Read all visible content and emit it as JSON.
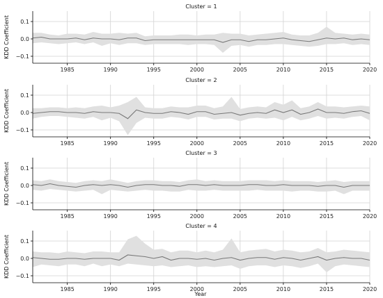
{
  "figure": {
    "ylabel": "KDD Coefficient",
    "xlabel": "Year"
  },
  "style": {
    "line_color": "#777777",
    "band_color": "#e0e0e0",
    "grid_color": "#d2d2d2",
    "axis_color": "#000000"
  },
  "chart_data": [
    {
      "type": "line",
      "title": "Cluster = 1",
      "x": [
        1981,
        1982,
        1983,
        1984,
        1985,
        1986,
        1987,
        1988,
        1989,
        1990,
        1991,
        1992,
        1993,
        1994,
        1995,
        1996,
        1997,
        1998,
        1999,
        2000,
        2001,
        2002,
        2003,
        2004,
        2005,
        2006,
        2007,
        2008,
        2009,
        2010,
        2011,
        2012,
        2013,
        2014,
        2015,
        2016,
        2017,
        2018,
        2019,
        2020
      ],
      "values": [
        0.005,
        0.01,
        0.0,
        0.0,
        0.0,
        0.005,
        -0.005,
        0.005,
        0.0,
        0.0,
        -0.005,
        0.005,
        0.005,
        -0.01,
        -0.005,
        -0.005,
        -0.005,
        -0.005,
        -0.005,
        -0.005,
        -0.005,
        -0.005,
        -0.02,
        -0.005,
        -0.005,
        -0.015,
        -0.005,
        -0.005,
        0.0,
        0.005,
        -0.005,
        -0.01,
        -0.015,
        -0.005,
        0.005,
        0.0,
        0.005,
        -0.005,
        0.0,
        -0.005
      ],
      "lower": [
        -0.025,
        -0.02,
        -0.025,
        -0.03,
        -0.025,
        -0.02,
        -0.03,
        -0.02,
        -0.04,
        -0.025,
        -0.035,
        -0.025,
        -0.025,
        -0.035,
        -0.03,
        -0.03,
        -0.03,
        -0.03,
        -0.035,
        -0.03,
        -0.03,
        -0.035,
        -0.08,
        -0.04,
        -0.035,
        -0.045,
        -0.035,
        -0.035,
        -0.03,
        -0.03,
        -0.035,
        -0.04,
        -0.045,
        -0.04,
        -0.03,
        -0.03,
        -0.025,
        -0.035,
        -0.03,
        -0.035
      ],
      "upper": [
        0.035,
        0.035,
        0.025,
        0.02,
        0.03,
        0.03,
        0.025,
        0.04,
        0.03,
        0.03,
        0.035,
        0.03,
        0.035,
        0.015,
        0.02,
        0.02,
        0.02,
        0.025,
        0.025,
        0.02,
        0.025,
        0.025,
        0.035,
        0.03,
        0.03,
        0.02,
        0.025,
        0.03,
        0.035,
        0.04,
        0.025,
        0.02,
        0.02,
        0.035,
        0.07,
        0.035,
        0.03,
        0.025,
        0.03,
        0.025
      ],
      "xlim": [
        1981,
        2020
      ],
      "ylim": [
        -0.14,
        0.16
      ],
      "yticks": [
        0.1,
        0.0,
        -0.1
      ],
      "ytick_labels": [
        "0.1",
        "0.0",
        "−0.1"
      ],
      "xticks": [
        1985,
        1990,
        1995,
        2000,
        2005,
        2010,
        2015,
        2020
      ],
      "xtick_labels": [
        "1985",
        "1990",
        "1995",
        "2000",
        "2005",
        "2010",
        "2015",
        "2020"
      ],
      "grid": true
    },
    {
      "type": "line",
      "title": "Cluster = 2",
      "x": [
        1981,
        1982,
        1983,
        1984,
        1985,
        1986,
        1987,
        1988,
        1989,
        1990,
        1991,
        1992,
        1993,
        1994,
        1995,
        1996,
        1997,
        1998,
        1999,
        2000,
        2001,
        2002,
        2003,
        2004,
        2005,
        2006,
        2007,
        2008,
        2009,
        2010,
        2011,
        2012,
        2013,
        2014,
        2015,
        2016,
        2017,
        2018,
        2019,
        2020
      ],
      "values": [
        -0.005,
        0.0,
        0.005,
        0.005,
        0.0,
        0.0,
        -0.005,
        0.005,
        0.0,
        0.0,
        -0.005,
        -0.035,
        0.015,
        0.0,
        -0.005,
        -0.005,
        0.005,
        0.0,
        -0.01,
        0.005,
        0.005,
        -0.01,
        -0.005,
        0.0,
        -0.015,
        -0.005,
        0.0,
        -0.005,
        0.015,
        0.0,
        0.015,
        -0.01,
        0.0,
        0.02,
        0.0,
        0.0,
        -0.005,
        0.005,
        0.01,
        -0.005
      ],
      "lower": [
        -0.035,
        -0.025,
        -0.02,
        -0.02,
        -0.025,
        -0.03,
        -0.035,
        -0.025,
        -0.045,
        -0.03,
        -0.05,
        -0.13,
        -0.06,
        -0.03,
        -0.035,
        -0.035,
        -0.025,
        -0.03,
        -0.04,
        -0.025,
        -0.025,
        -0.04,
        -0.035,
        -0.035,
        -0.05,
        -0.035,
        -0.03,
        -0.035,
        -0.03,
        -0.045,
        -0.025,
        -0.045,
        -0.035,
        -0.02,
        -0.035,
        -0.03,
        -0.035,
        -0.025,
        -0.02,
        -0.045
      ],
      "upper": [
        0.025,
        0.025,
        0.03,
        0.03,
        0.025,
        0.03,
        0.025,
        0.035,
        0.04,
        0.03,
        0.04,
        0.06,
        0.09,
        0.03,
        0.025,
        0.025,
        0.035,
        0.03,
        0.03,
        0.04,
        0.04,
        0.025,
        0.035,
        0.09,
        0.02,
        0.03,
        0.035,
        0.03,
        0.06,
        0.045,
        0.07,
        0.025,
        0.035,
        0.06,
        0.035,
        0.035,
        0.03,
        0.035,
        0.04,
        0.035
      ],
      "xlim": [
        1981,
        2020
      ],
      "ylim": [
        -0.14,
        0.16
      ],
      "yticks": [
        0.1,
        0.0,
        -0.1
      ],
      "ytick_labels": [
        "0.1",
        "0.0",
        "−0.1"
      ],
      "xticks": [
        1985,
        1990,
        1995,
        2000,
        2005,
        2010,
        2015,
        2020
      ],
      "xtick_labels": [
        "1985",
        "1990",
        "1995",
        "2000",
        "2005",
        "2010",
        "2015",
        "2020"
      ],
      "grid": true
    },
    {
      "type": "line",
      "title": "Cluster = 3",
      "x": [
        1981,
        1982,
        1983,
        1984,
        1985,
        1986,
        1987,
        1988,
        1989,
        1990,
        1991,
        1992,
        1993,
        1994,
        1995,
        1996,
        1997,
        1998,
        1999,
        2000,
        2001,
        2002,
        2003,
        2004,
        2005,
        2006,
        2007,
        2008,
        2009,
        2010,
        2011,
        2012,
        2013,
        2014,
        2015,
        2016,
        2017,
        2018,
        2019,
        2020
      ],
      "values": [
        0.005,
        0.0,
        0.01,
        0.0,
        -0.005,
        -0.01,
        0.0,
        0.005,
        0.0,
        0.005,
        0.0,
        -0.01,
        0.0,
        0.005,
        0.005,
        0.0,
        0.0,
        -0.005,
        0.005,
        0.005,
        0.0,
        0.005,
        0.0,
        0.0,
        0.0,
        0.005,
        0.005,
        0.0,
        0.0,
        0.005,
        0.0,
        0.0,
        0.0,
        -0.005,
        0.0,
        0.0,
        -0.01,
        0.0,
        0.0,
        0.0
      ],
      "lower": [
        -0.025,
        -0.03,
        -0.02,
        -0.025,
        -0.03,
        -0.035,
        -0.03,
        -0.025,
        -0.05,
        -0.025,
        -0.03,
        -0.035,
        -0.03,
        -0.025,
        -0.03,
        -0.03,
        -0.035,
        -0.035,
        -0.025,
        -0.03,
        -0.03,
        -0.025,
        -0.03,
        -0.03,
        -0.03,
        -0.03,
        -0.025,
        -0.03,
        -0.03,
        -0.03,
        -0.035,
        -0.03,
        -0.03,
        -0.035,
        -0.035,
        -0.03,
        -0.05,
        -0.03,
        -0.03,
        -0.03
      ],
      "upper": [
        0.03,
        0.025,
        0.035,
        0.025,
        0.02,
        0.015,
        0.025,
        0.03,
        0.025,
        0.035,
        0.025,
        0.015,
        0.025,
        0.03,
        0.03,
        0.025,
        0.025,
        0.02,
        0.03,
        0.035,
        0.025,
        0.03,
        0.025,
        0.025,
        0.025,
        0.03,
        0.03,
        0.03,
        0.025,
        0.03,
        0.025,
        0.025,
        0.025,
        0.02,
        0.025,
        0.03,
        0.02,
        0.025,
        0.025,
        0.025
      ],
      "xlim": [
        1981,
        2020
      ],
      "ylim": [
        -0.14,
        0.16
      ],
      "yticks": [
        0.1,
        0.0,
        -0.1
      ],
      "ytick_labels": [
        "0.1",
        "0.0",
        "−0.1"
      ],
      "xticks": [
        1985,
        1990,
        1995,
        2000,
        2005,
        2010,
        2015,
        2020
      ],
      "xtick_labels": [
        "1985",
        "1990",
        "1995",
        "2000",
        "2005",
        "2010",
        "2015",
        "2020"
      ],
      "grid": true
    },
    {
      "type": "line",
      "title": "Cluster = 4",
      "x": [
        1981,
        1982,
        1983,
        1984,
        1985,
        1986,
        1987,
        1988,
        1989,
        1990,
        1991,
        1992,
        1993,
        1994,
        1995,
        1996,
        1997,
        1998,
        1999,
        2000,
        2001,
        2002,
        2003,
        2004,
        2005,
        2006,
        2007,
        2008,
        2009,
        2010,
        2011,
        2012,
        2013,
        2014,
        2015,
        2016,
        2017,
        2018,
        2019,
        2020
      ],
      "values": [
        0.005,
        0.0,
        -0.005,
        -0.005,
        0.0,
        0.0,
        -0.005,
        0.0,
        0.0,
        0.0,
        -0.01,
        0.02,
        0.015,
        0.01,
        0.0,
        0.01,
        -0.01,
        0.0,
        0.0,
        -0.005,
        0.0,
        -0.01,
        0.0,
        0.005,
        -0.01,
        0.0,
        0.005,
        0.005,
        -0.005,
        0.005,
        0.0,
        -0.01,
        0.0,
        0.01,
        -0.01,
        0.0,
        0.005,
        0.0,
        0.0,
        -0.01
      ],
      "lower": [
        -0.05,
        -0.035,
        -0.04,
        -0.045,
        -0.035,
        -0.035,
        -0.045,
        -0.03,
        -0.045,
        -0.035,
        -0.045,
        -0.03,
        -0.035,
        -0.04,
        -0.045,
        -0.04,
        -0.05,
        -0.045,
        -0.04,
        -0.05,
        -0.045,
        -0.05,
        -0.045,
        -0.04,
        -0.06,
        -0.045,
        -0.04,
        -0.04,
        -0.05,
        -0.04,
        -0.045,
        -0.055,
        -0.045,
        -0.03,
        -0.08,
        -0.045,
        -0.035,
        -0.04,
        -0.045,
        -0.05
      ],
      "upper": [
        0.04,
        0.035,
        0.035,
        0.03,
        0.04,
        0.035,
        0.03,
        0.04,
        0.04,
        0.035,
        0.035,
        0.11,
        0.13,
        0.085,
        0.05,
        0.055,
        0.035,
        0.045,
        0.045,
        0.035,
        0.045,
        0.035,
        0.05,
        0.115,
        0.035,
        0.045,
        0.05,
        0.055,
        0.04,
        0.05,
        0.045,
        0.035,
        0.04,
        0.06,
        0.035,
        0.04,
        0.05,
        0.045,
        0.04,
        0.035
      ],
      "xlim": [
        1981,
        2020
      ],
      "ylim": [
        -0.14,
        0.16
      ],
      "yticks": [
        0.1,
        0.0,
        -0.1
      ],
      "ytick_labels": [
        "0.1",
        "0.0",
        "−0.1"
      ],
      "xticks": [
        1985,
        1990,
        1995,
        2000,
        2005,
        2010,
        2015,
        2020
      ],
      "xtick_labels": [
        "1985",
        "1990",
        "1995",
        "2000",
        "2005",
        "2010",
        "2015",
        "2020"
      ],
      "grid": true
    }
  ]
}
